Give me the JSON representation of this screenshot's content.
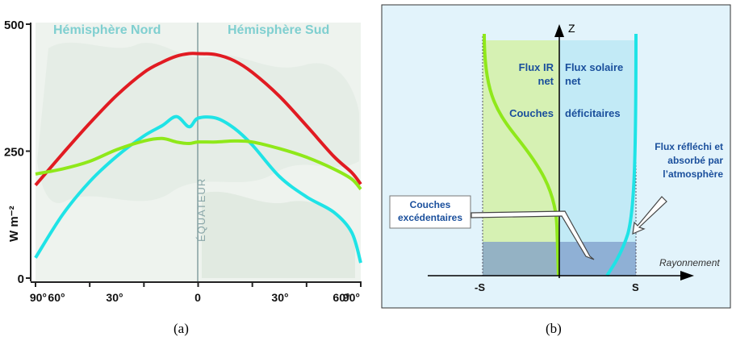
{
  "caption_a": "(a)",
  "caption_b": "(b)",
  "chart_data": [
    {
      "type": "line",
      "ylabel": "W m⁻²",
      "ylim": [
        0,
        500
      ],
      "yticks": [
        "0",
        "250",
        "500"
      ],
      "xticks": [
        "90°",
        "60°",
        "30°",
        "0",
        "30°",
        "60°",
        "90°"
      ],
      "region_labels": [
        "Hémisphère Nord",
        "Hémisphère Sud"
      ],
      "center_label": "ÉQUATEUR",
      "x": [
        -90,
        -75,
        -60,
        -45,
        -30,
        -20,
        -12,
        -5,
        0,
        10,
        20,
        30,
        45,
        60,
        75,
        85,
        90
      ],
      "series": [
        {
          "color": "#e11b22",
          "values": [
            183,
            245,
            305,
            360,
            405,
            425,
            437,
            442,
            442,
            440,
            428,
            405,
            358,
            300,
            240,
            208,
            185
          ]
        },
        {
          "color": "#1fe3e6",
          "values": [
            40,
            125,
            190,
            240,
            280,
            300,
            318,
            298,
            315,
            315,
            295,
            262,
            200,
            160,
            130,
            90,
            30
          ]
        },
        {
          "color": "#8fe81a",
          "values": [
            205,
            215,
            230,
            253,
            270,
            275,
            268,
            265,
            268,
            268,
            270,
            268,
            255,
            238,
            215,
            195,
            175
          ]
        }
      ],
      "grid": false
    },
    {
      "type": "diagram",
      "z_label": "Z",
      "x_axis_label": "Rayonnement",
      "tick_neg": "-S",
      "tick_pos": "S",
      "label_ir": "Flux IR\nnet",
      "label_solar": "Flux solaire\nnet",
      "label_couches": "Couches",
      "label_deficit": "déficitaires",
      "label_excedent": "Couches\nexcédentaires",
      "label_reflechi": "Flux réfléchi et\nabsorbé par\nl’atmosphère",
      "colors": {
        "ir_curve": "#8fe81a",
        "solar_curve": "#1fe3e6",
        "ir_zone": "#d4f0a6",
        "solar_zone": "#bfe9f5",
        "frame_bg": "#e2f3fb",
        "text_blue": "#1a4f9c"
      }
    }
  ]
}
